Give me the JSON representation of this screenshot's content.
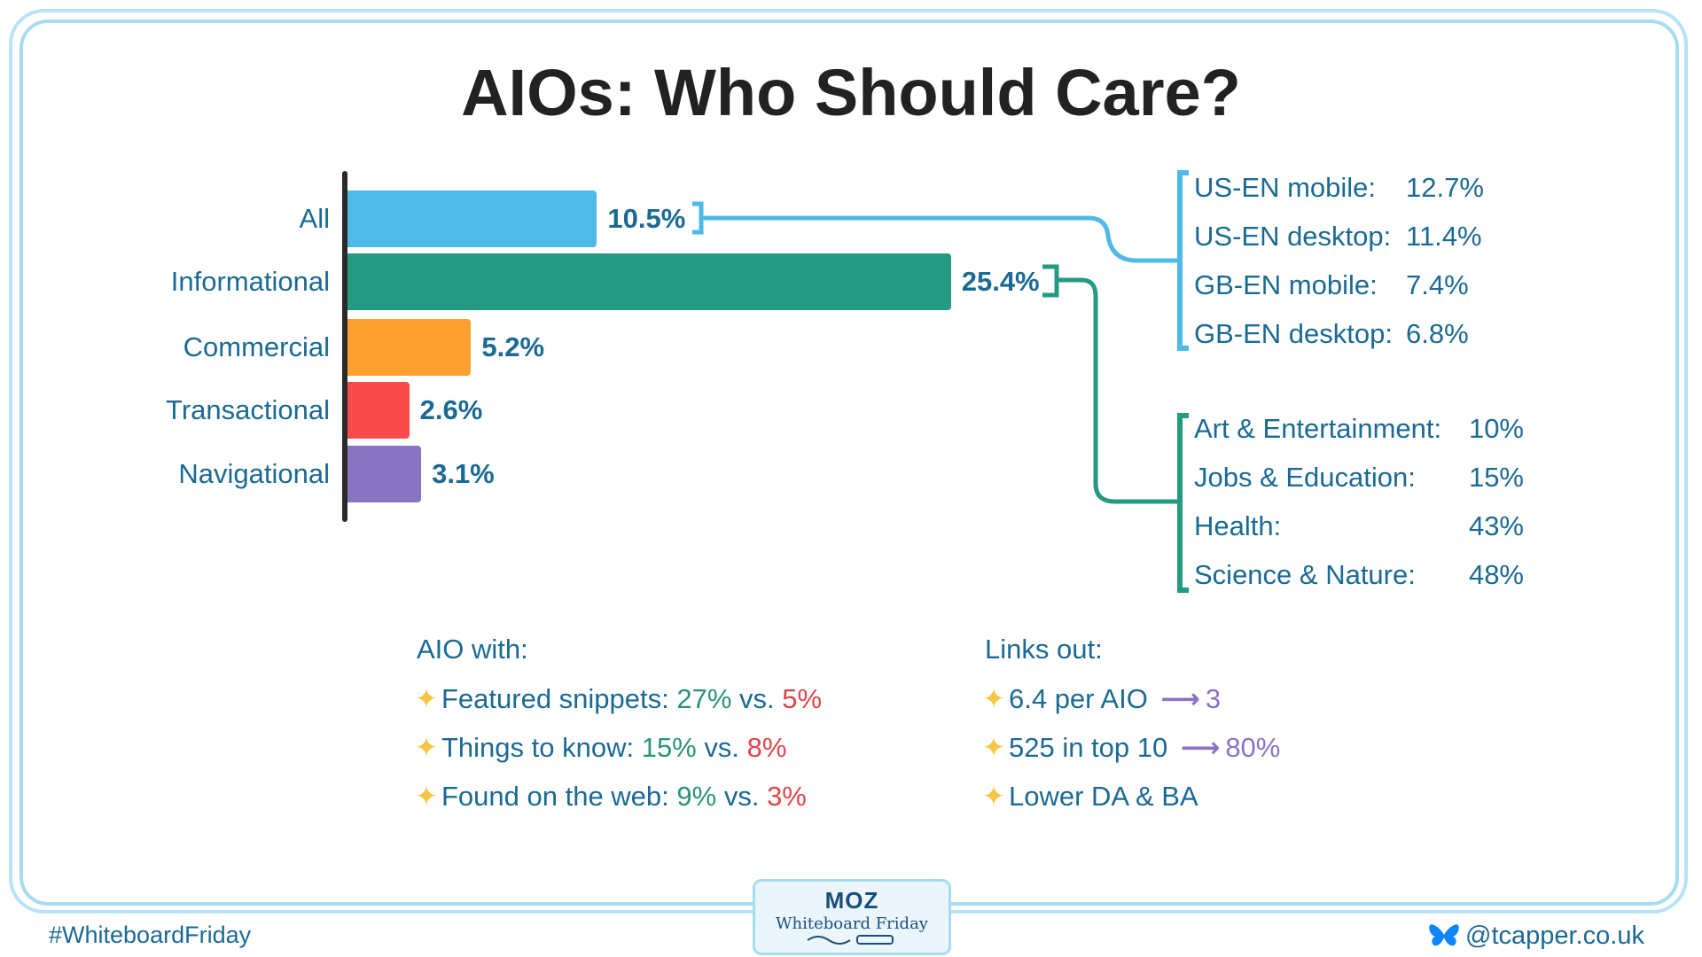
{
  "title": "AIOs: Who Should Care?",
  "chart_data": {
    "type": "bar",
    "orientation": "horizontal",
    "categories": [
      "All",
      "Informational",
      "Commercial",
      "Transactional",
      "Navigational"
    ],
    "values": [
      10.5,
      25.4,
      5.2,
      2.6,
      3.1
    ],
    "value_labels": [
      "10.5%",
      "25.4%",
      "5.2%",
      "2.6%",
      "3.1%"
    ],
    "colors": [
      "#4fb9e8",
      "#249b80",
      "#fca130",
      "#fb4a4a",
      "#8775c2"
    ]
  },
  "all_breakdown": [
    {
      "label": "US-EN mobile:",
      "value": "12.7%"
    },
    {
      "label": "US-EN desktop:",
      "value": "11.4%"
    },
    {
      "label": "GB-EN mobile:",
      "value": "7.4%"
    },
    {
      "label": "GB-EN desktop:",
      "value": "6.8%"
    }
  ],
  "informational_breakdown": [
    {
      "label": "Art & Entertainment:",
      "value": "10%"
    },
    {
      "label": "Jobs & Education:",
      "value": "15%"
    },
    {
      "label": "Health:",
      "value": "43%"
    },
    {
      "label": "Science & Nature:",
      "value": "48%"
    }
  ],
  "aio_with": {
    "heading": "AIO with:",
    "items": [
      {
        "label": "Featured snippets:",
        "a": "27%",
        "vs": "vs.",
        "b": "5%"
      },
      {
        "label": "Things to know:",
        "a": "15%",
        "vs": "vs.",
        "b": "8%"
      },
      {
        "label": "Found on the web:",
        "a": "9%",
        "vs": "vs.",
        "b": "3%"
      }
    ]
  },
  "links_out": {
    "heading": "Links out:",
    "items": [
      {
        "label": "6.4 per AIO",
        "result": "3"
      },
      {
        "label": "525 in top 10",
        "result": "80%"
      },
      {
        "label": "Lower DA & BA",
        "result": ""
      }
    ]
  },
  "footer": {
    "hashtag": "#WhiteboardFriday",
    "logo_brand": "MOZ",
    "logo_text": "Whiteboard Friday",
    "handle": "@tcapper.co.uk",
    "handle_icon": "bluesky-butterfly-icon"
  },
  "icons": {
    "bullet": "sparkle-star-icon",
    "arrow": "arrow-right-icon"
  }
}
